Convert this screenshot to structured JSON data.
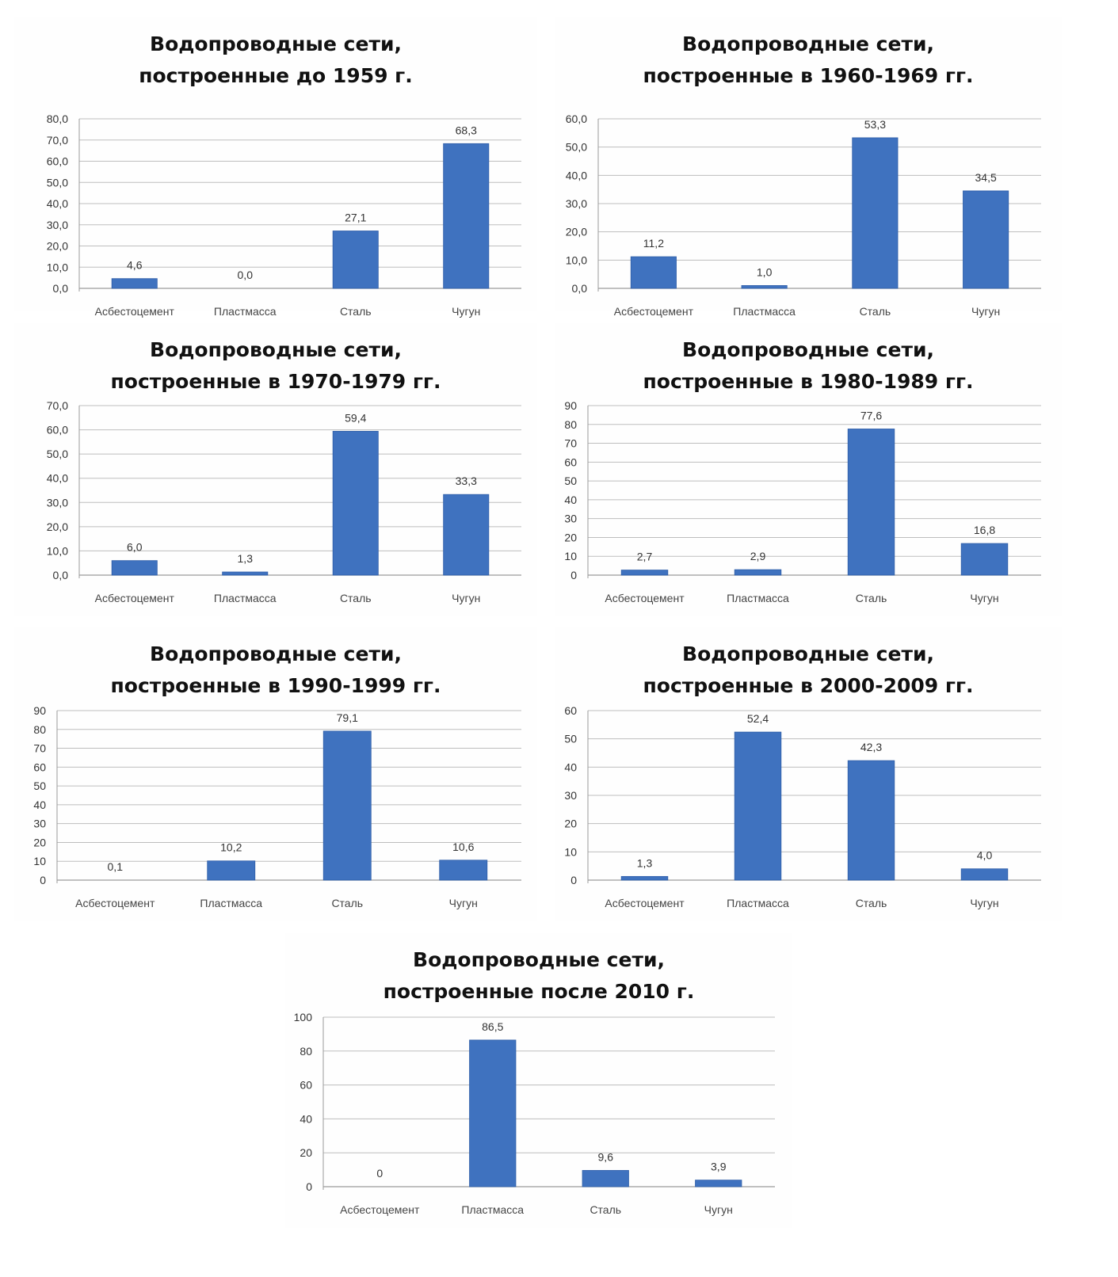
{
  "chart_data": [
    {
      "type": "bar",
      "title": [
        "Водопроводные сети,",
        "построенные до 1959 г."
      ],
      "categories": [
        "Асбестоцемент",
        "Пластмасса",
        "Сталь",
        "Чугун"
      ],
      "values": [
        4.6,
        0.0,
        27.1,
        68.3
      ],
      "value_labels": [
        "4,6",
        "0,0",
        "27,1",
        "68,3"
      ],
      "ylim": [
        0,
        80
      ],
      "yticks": [
        0,
        10,
        20,
        30,
        40,
        50,
        60,
        70,
        80
      ],
      "ytick_labels": [
        "0,0",
        "10,0",
        "20,0",
        "30,0",
        "40,0",
        "50,0",
        "60,0",
        "70,0",
        "80,0"
      ],
      "xlabel": "",
      "ylabel": "",
      "grid": true,
      "legend": "none"
    },
    {
      "type": "bar",
      "title": [
        "Водопроводные сети,",
        "построенные в 1960-1969 гг."
      ],
      "categories": [
        "Асбестоцемент",
        "Пластмасса",
        "Сталь",
        "Чугун"
      ],
      "values": [
        11.2,
        1.0,
        53.3,
        34.5
      ],
      "value_labels": [
        "11,2",
        "1,0",
        "53,3",
        "34,5"
      ],
      "ylim": [
        0,
        60
      ],
      "yticks": [
        0,
        10,
        20,
        30,
        40,
        50,
        60
      ],
      "ytick_labels": [
        "0,0",
        "10,0",
        "20,0",
        "30,0",
        "40,0",
        "50,0",
        "60,0"
      ],
      "xlabel": "",
      "ylabel": "",
      "grid": true,
      "legend": "none"
    },
    {
      "type": "bar",
      "title": [
        "Водопроводные сети,",
        "построенные в 1970-1979  гг."
      ],
      "categories": [
        "Асбестоцемент",
        "Пластмасса",
        "Сталь",
        "Чугун"
      ],
      "values": [
        6.0,
        1.3,
        59.4,
        33.3
      ],
      "value_labels": [
        "6,0",
        "1,3",
        "59,4",
        "33,3"
      ],
      "ylim": [
        0,
        70
      ],
      "yticks": [
        0,
        10,
        20,
        30,
        40,
        50,
        60,
        70
      ],
      "ytick_labels": [
        "0,0",
        "10,0",
        "20,0",
        "30,0",
        "40,0",
        "50,0",
        "60,0",
        "70,0"
      ],
      "xlabel": "",
      "ylabel": "",
      "grid": true,
      "legend": "none"
    },
    {
      "type": "bar",
      "title": [
        "Водопроводные сети,",
        "построенные в 1980-1989 гг."
      ],
      "categories": [
        "Асбестоцемент",
        "Пластмасса",
        "Сталь",
        "Чугун"
      ],
      "values": [
        2.7,
        2.9,
        77.6,
        16.8
      ],
      "value_labels": [
        "2,7",
        "2,9",
        "77,6",
        "16,8"
      ],
      "ylim": [
        0,
        90
      ],
      "yticks": [
        0,
        10,
        20,
        30,
        40,
        50,
        60,
        70,
        80,
        90
      ],
      "ytick_labels": [
        "0",
        "10",
        "20",
        "30",
        "40",
        "50",
        "60",
        "70",
        "80",
        "90"
      ],
      "xlabel": "",
      "ylabel": "",
      "grid": true,
      "legend": "none"
    },
    {
      "type": "bar",
      "title": [
        "Водопроводные сети,",
        "построенные в 1990-1999 гг."
      ],
      "categories": [
        "Асбестоцемент",
        "Пластмасса",
        "Сталь",
        "Чугун"
      ],
      "values": [
        0.1,
        10.2,
        79.1,
        10.6
      ],
      "value_labels": [
        "0,1",
        "10,2",
        "79,1",
        "10,6"
      ],
      "ylim": [
        0,
        90
      ],
      "yticks": [
        0,
        10,
        20,
        30,
        40,
        50,
        60,
        70,
        80,
        90
      ],
      "ytick_labels": [
        "0",
        "10",
        "20",
        "30",
        "40",
        "50",
        "60",
        "70",
        "80",
        "90"
      ],
      "xlabel": "",
      "ylabel": "",
      "grid": true,
      "legend": "none"
    },
    {
      "type": "bar",
      "title": [
        "Водопроводные сети,",
        "построенные в 2000-2009 гг."
      ],
      "categories": [
        "Асбестоцемент",
        "Пластмасса",
        "Сталь",
        "Чугун"
      ],
      "values": [
        1.3,
        52.4,
        42.3,
        4.0
      ],
      "value_labels": [
        "1,3",
        "52,4",
        "42,3",
        "4,0"
      ],
      "ylim": [
        0,
        60
      ],
      "yticks": [
        0,
        10,
        20,
        30,
        40,
        50,
        60
      ],
      "ytick_labels": [
        "0",
        "10",
        "20",
        "30",
        "40",
        "50",
        "60"
      ],
      "xlabel": "",
      "ylabel": "",
      "grid": true,
      "legend": "none"
    },
    {
      "type": "bar",
      "title": [
        "Водопроводные сети,",
        "построенные после 2010 г."
      ],
      "categories": [
        "Асбестоцемент",
        "Пластмасса",
        "Сталь",
        "Чугун"
      ],
      "values": [
        0,
        86.5,
        9.6,
        3.9
      ],
      "value_labels": [
        "0",
        "86,5",
        "9,6",
        "3,9"
      ],
      "ylim": [
        0,
        100
      ],
      "yticks": [
        0,
        20,
        40,
        60,
        80,
        100
      ],
      "ytick_labels": [
        "0",
        "20",
        "40",
        "60",
        "80",
        "100"
      ],
      "xlabel": "",
      "ylabel": "",
      "grid": true,
      "legend": "none"
    }
  ],
  "colors": {
    "bar": "#3f72bf",
    "bar_edge": "#2f5ea8",
    "grid": "#bdbdbd",
    "axis": "#9a9a9a"
  }
}
